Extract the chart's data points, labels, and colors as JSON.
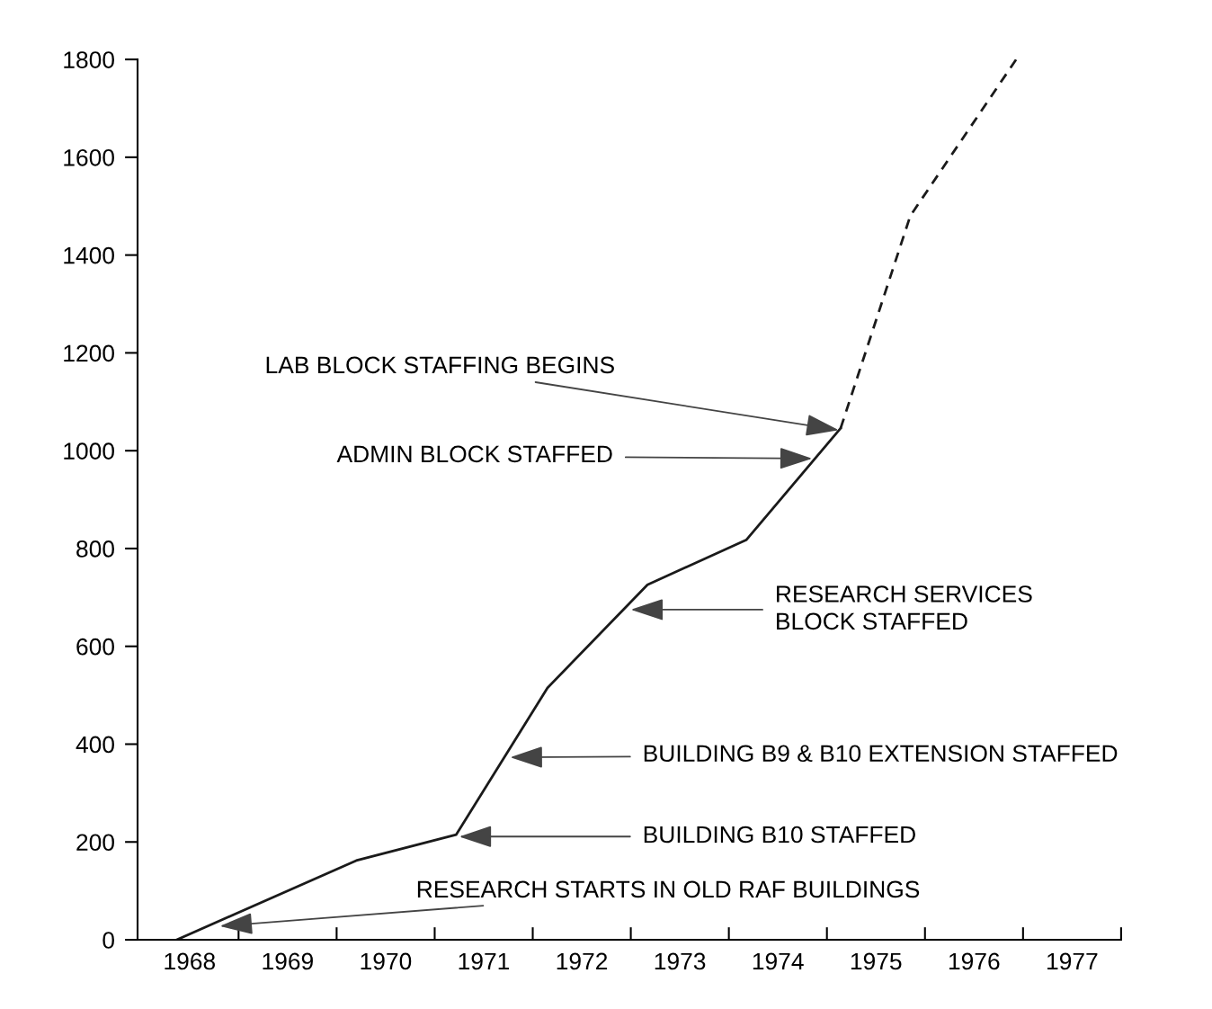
{
  "chart_data": {
    "type": "line",
    "series": [
      {
        "color": "#1a1a1a",
        "line_style": "solid",
        "x": [
          1968.37,
          1970.2,
          1971.22,
          1972.15,
          1973.17,
          1974.18,
          1975.14
        ],
        "values": [
          0,
          162,
          215,
          515,
          726,
          818,
          1046
        ]
      },
      {
        "color": "#1a1a1a",
        "line_style": "dashed",
        "x": [
          1975.14,
          1975.85,
          1976.93
        ],
        "values": [
          1046,
          1480,
          1800
        ]
      }
    ],
    "xlim": [
      1967.97,
      1978
    ],
    "xticks": [
      {
        "value": 1968.5,
        "label": "1968"
      },
      {
        "value": 1969,
        "label": null
      },
      {
        "value": 1969.5,
        "label": "1969"
      },
      {
        "value": 1970,
        "label": null
      },
      {
        "value": 1970.5,
        "label": "1970"
      },
      {
        "value": 1971,
        "label": null
      },
      {
        "value": 1971.5,
        "label": "1971"
      },
      {
        "value": 1972,
        "label": null
      },
      {
        "value": 1972.5,
        "label": "1972"
      },
      {
        "value": 1973,
        "label": null
      },
      {
        "value": 1973.5,
        "label": "1973"
      },
      {
        "value": 1974,
        "label": null
      },
      {
        "value": 1974.5,
        "label": "1974"
      },
      {
        "value": 1975,
        "label": null
      },
      {
        "value": 1975.5,
        "label": "1975"
      },
      {
        "value": 1976,
        "label": null
      },
      {
        "value": 1976.5,
        "label": "1976"
      },
      {
        "value": 1977,
        "label": null
      },
      {
        "value": 1977.5,
        "label": "1977"
      },
      {
        "value": 1978,
        "label": null
      }
    ],
    "ylim": [
      0,
      1800
    ],
    "yticks": [
      0,
      200,
      400,
      600,
      800,
      1000,
      1200,
      1400,
      1600,
      1800
    ],
    "grid": false,
    "legend": false,
    "annotations": [
      {
        "text": "LAB BLOCK STAFFING BEGINS",
        "x": 1975.12,
        "y": 1042
      },
      {
        "text": "ADMIN BLOCK STAFFED",
        "x": 1974.85,
        "y": 984
      },
      {
        "text": "RESEARCH SERVICES\nBLOCK STAFFED",
        "x": 1973.0,
        "y": 675
      },
      {
        "text": "BUILDING B9 & B10 EXTENSION STAFFED",
        "x": 1971.77,
        "y": 373
      },
      {
        "text": "BUILDING B10 STAFFED",
        "x": 1971.25,
        "y": 211
      },
      {
        "text": "RESEARCH STARTS IN OLD RAF BUILDINGS",
        "x": 1968.81,
        "y": 28
      }
    ]
  }
}
